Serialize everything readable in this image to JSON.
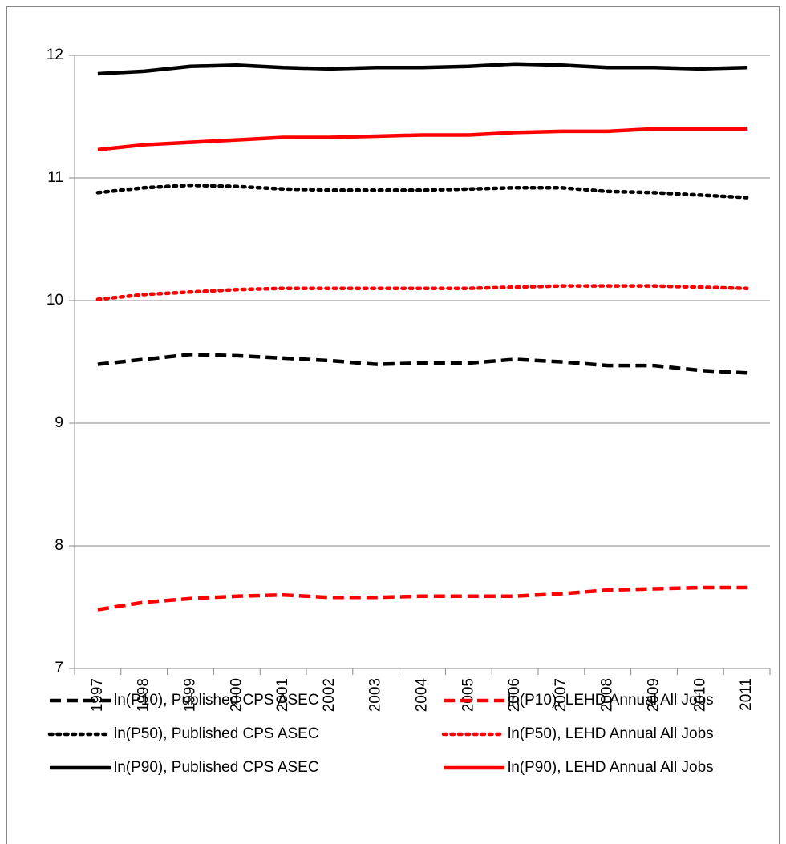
{
  "chart_data": {
    "type": "line",
    "categories": [
      "1997",
      "1998",
      "1999",
      "2000",
      "2001",
      "2002",
      "2003",
      "2004",
      "2005",
      "2006",
      "2007",
      "2008",
      "2009",
      "2010",
      "2011"
    ],
    "series": [
      {
        "name": "ln(P10), Published CPS ASEC",
        "color": "#000000",
        "dash": "dashed",
        "values": [
          9.48,
          9.52,
          9.56,
          9.55,
          9.53,
          9.51,
          9.48,
          9.49,
          9.49,
          9.52,
          9.5,
          9.47,
          9.47,
          9.43,
          9.41
        ]
      },
      {
        "name": "ln(P10), LEHD Annual All Jobs",
        "color": "#ff0000",
        "dash": "dashed",
        "values": [
          7.48,
          7.54,
          7.57,
          7.59,
          7.6,
          7.58,
          7.58,
          7.59,
          7.59,
          7.59,
          7.61,
          7.64,
          7.65,
          7.66,
          7.66
        ]
      },
      {
        "name": "ln(P50), Published CPS ASEC",
        "color": "#000000",
        "dash": "dotted",
        "values": [
          10.88,
          10.92,
          10.94,
          10.93,
          10.91,
          10.9,
          10.9,
          10.9,
          10.91,
          10.92,
          10.92,
          10.89,
          10.88,
          10.86,
          10.84
        ]
      },
      {
        "name": "ln(P50), LEHD Annual All Jobs",
        "color": "#ff0000",
        "dash": "dotted",
        "values": [
          10.01,
          10.05,
          10.07,
          10.09,
          10.1,
          10.1,
          10.1,
          10.1,
          10.1,
          10.11,
          10.12,
          10.12,
          10.12,
          10.11,
          10.1
        ]
      },
      {
        "name": "ln(P90), Published CPS ASEC",
        "color": "#000000",
        "dash": "solid",
        "values": [
          11.85,
          11.87,
          11.91,
          11.92,
          11.9,
          11.89,
          11.9,
          11.9,
          11.91,
          11.93,
          11.92,
          11.9,
          11.9,
          11.89,
          11.9
        ]
      },
      {
        "name": "ln(P90), LEHD Annual All Jobs",
        "color": "#ff0000",
        "dash": "solid",
        "values": [
          11.23,
          11.27,
          11.29,
          11.31,
          11.33,
          11.33,
          11.34,
          11.35,
          11.35,
          11.37,
          11.38,
          11.38,
          11.4,
          11.4,
          11.4
        ]
      }
    ],
    "ylim": [
      7,
      12
    ],
    "yticks": [
      7,
      8,
      9,
      10,
      11,
      12
    ],
    "grid": true,
    "legend": "bottom"
  }
}
